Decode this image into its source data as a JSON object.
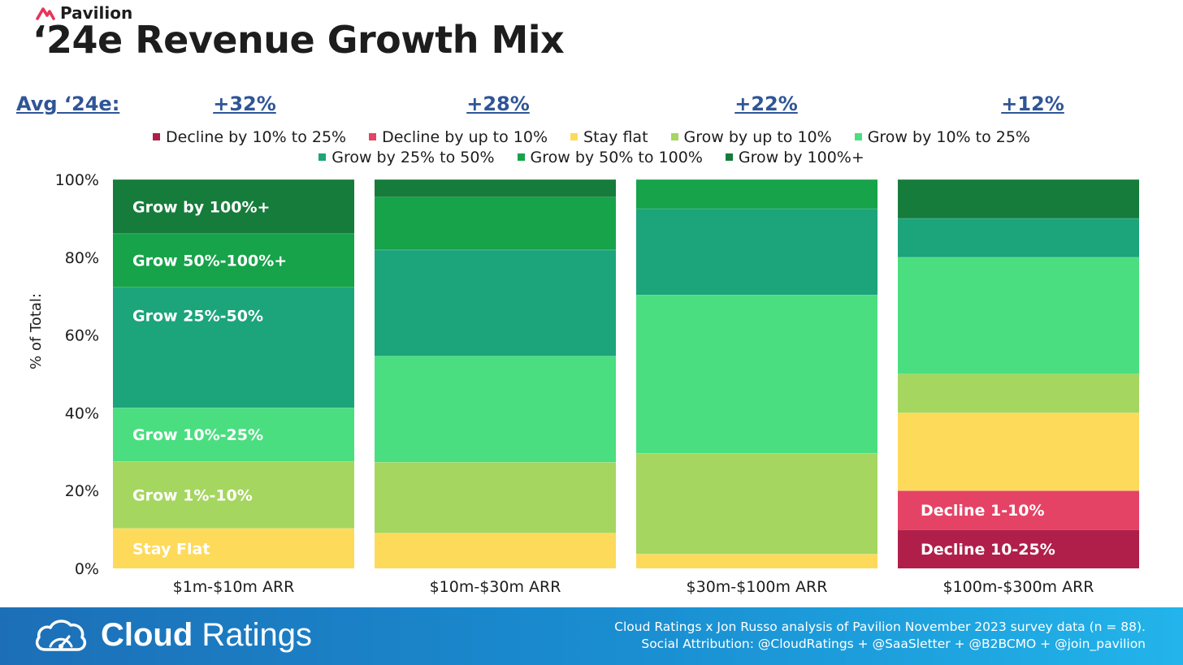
{
  "brand": {
    "name": "Pavilion",
    "icon": "pavilion-logo-icon",
    "color": "#e8345a"
  },
  "title": "‘24e Revenue Growth Mix",
  "avg": {
    "label": "Avg ‘24e:",
    "values": [
      "+32%",
      "+28%",
      "+22%",
      "+12%"
    ]
  },
  "legend_rows": [
    [
      "Decline by 10% to 25%",
      "Decline by up to 10%",
      "Stay flat",
      "Grow by up to 10%",
      "Grow by 10% to 25%"
    ],
    [
      "Grow by 25% to 50%",
      "Grow by 50% to 100%",
      "Grow by 100%+"
    ]
  ],
  "chart_data": {
    "type": "bar",
    "stacked": true,
    "categories": [
      "$1m-$10m ARR",
      "$10m-$30m ARR",
      "$30m-$100m ARR",
      "$100m-$300m ARR"
    ],
    "ylabel": "% of Total:",
    "ylim": [
      0,
      100
    ],
    "yticks": [
      "0%",
      "20%",
      "40%",
      "60%",
      "80%",
      "100%"
    ],
    "series": [
      {
        "name": "Decline by 10% to 25%",
        "color": "#b01f4a",
        "values": [
          0,
          0,
          0,
          10
        ]
      },
      {
        "name": "Decline by up to 10%",
        "color": "#e54365",
        "values": [
          0,
          0,
          0,
          10
        ]
      },
      {
        "name": "Stay flat",
        "color": "#fdda5a",
        "values": [
          10.3,
          9.1,
          3.7,
          20
        ]
      },
      {
        "name": "Grow by up to 10%",
        "color": "#a5d65f",
        "values": [
          17.2,
          18.2,
          25.9,
          10
        ]
      },
      {
        "name": "Grow by 10% to 25%",
        "color": "#4ade80",
        "values": [
          13.8,
          27.3,
          40.7,
          30
        ]
      },
      {
        "name": "Grow by 25% to 50%",
        "color": "#1ca47a",
        "values": [
          31,
          27.3,
          22.2,
          10
        ]
      },
      {
        "name": "Grow by 50% to 100%",
        "color": "#16a34a",
        "values": [
          13.8,
          13.6,
          7.5,
          0
        ]
      },
      {
        "name": "Grow by 100%+",
        "color": "#167c3b",
        "values": [
          13.9,
          4.5,
          0,
          10
        ]
      }
    ],
    "annotations": [
      {
        "bar": 0,
        "series": 7,
        "text": "Grow by 100%+"
      },
      {
        "bar": 0,
        "series": 6,
        "text": "Grow 50%-100%+"
      },
      {
        "bar": 0,
        "series": 5,
        "text": "Grow 25%-50%",
        "anchor": "top"
      },
      {
        "bar": 0,
        "series": 4,
        "text": "Grow 10%-25%"
      },
      {
        "bar": 0,
        "series": 3,
        "text": "Grow 1%-10%"
      },
      {
        "bar": 0,
        "series": 2,
        "text": "Stay Flat"
      },
      {
        "bar": 3,
        "series": 1,
        "text": "Decline 1-10%"
      },
      {
        "bar": 3,
        "series": 0,
        "text": "Decline 10-25%"
      }
    ]
  },
  "footer": {
    "brand_bold": "Cloud",
    "brand_light": " Ratings",
    "logo_icon": "cloud-gauge-icon",
    "background": "#1a8fd2",
    "note_line1": "Cloud Ratings x Jon Russo analysis of Pavilion November 2023 survey data (n = 88).",
    "note_line2": "Social Attribution: @CloudRatings + @SaaSletter + @B2BCMO + @join_pavilion"
  }
}
